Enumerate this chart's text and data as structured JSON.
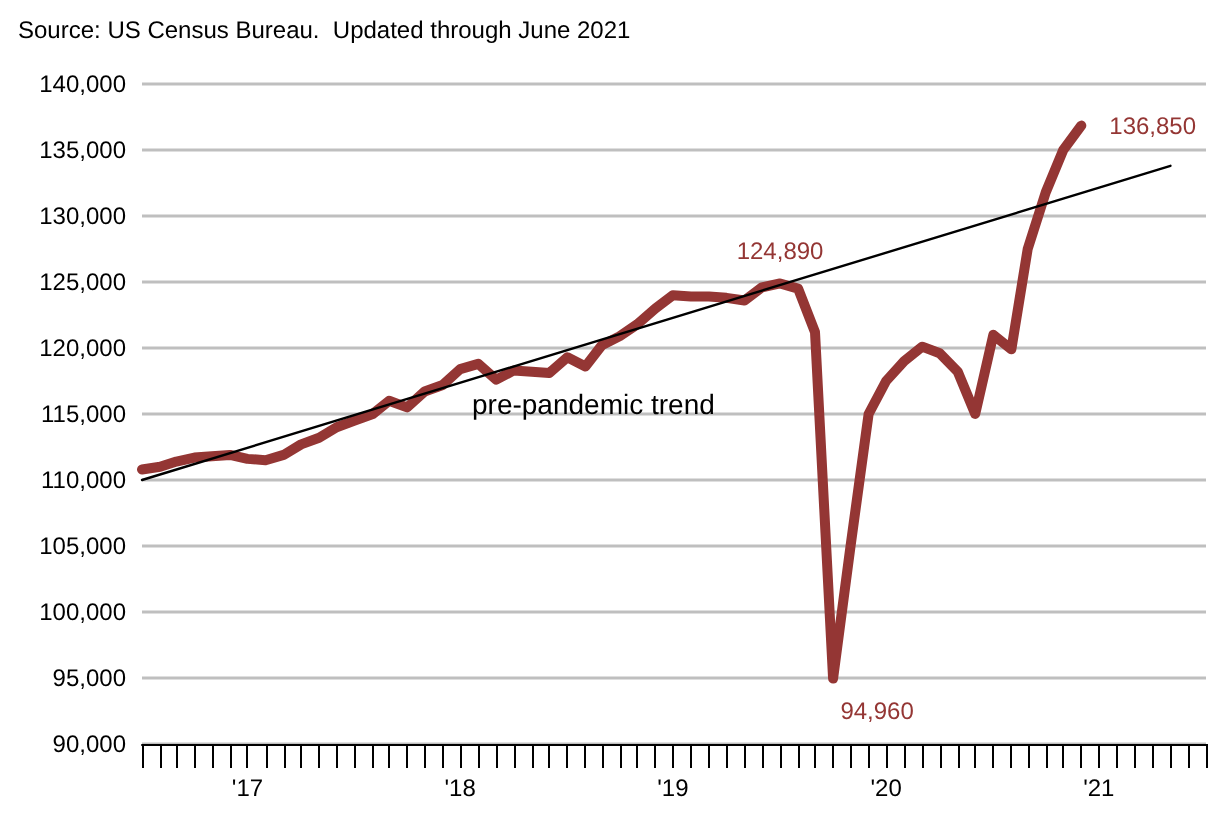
{
  "chart_data": {
    "type": "line",
    "title": "Source: US Census Bureau.  Updated through June 2021",
    "x": [
      "2017-01",
      "2017-02",
      "2017-03",
      "2017-04",
      "2017-05",
      "2017-06",
      "2017-07",
      "2017-08",
      "2017-09",
      "2017-10",
      "2017-11",
      "2017-12",
      "2018-01",
      "2018-02",
      "2018-03",
      "2018-04",
      "2018-05",
      "2018-06",
      "2018-07",
      "2018-08",
      "2018-09",
      "2018-10",
      "2018-11",
      "2018-12",
      "2019-01",
      "2019-02",
      "2019-03",
      "2019-04",
      "2019-05",
      "2019-06",
      "2019-07",
      "2019-08",
      "2019-09",
      "2019-10",
      "2019-11",
      "2019-12",
      "2020-01",
      "2020-02",
      "2020-03",
      "2020-04",
      "2020-05",
      "2020-06",
      "2020-07",
      "2020-08",
      "2020-09",
      "2020-10",
      "2020-11",
      "2020-12",
      "2021-01",
      "2021-02",
      "2021-03",
      "2021-04",
      "2021-05",
      "2021-06"
    ],
    "series": [
      {
        "color": "#943634",
        "values": [
          110800,
          111000,
          111400,
          111700,
          111800,
          111900,
          111600,
          111500,
          111900,
          112700,
          113200,
          114000,
          114500,
          115000,
          116000,
          115500,
          116700,
          117200,
          118400,
          118800,
          117600,
          118300,
          118200,
          118100,
          119300,
          118600,
          120200,
          120900,
          121800,
          123000,
          124000,
          123900,
          123900,
          123800,
          123600,
          124600,
          124890,
          124500,
          121200,
          94960,
          105000,
          115000,
          117500,
          119000,
          120100,
          119600,
          118200,
          115000,
          121000,
          119900,
          127500,
          131800,
          135000,
          136850
        ],
        "value_labels": [
          null,
          null,
          null,
          null,
          null,
          null,
          null,
          null,
          null,
          null,
          null,
          null,
          null,
          null,
          null,
          null,
          null,
          null,
          null,
          null,
          null,
          null,
          null,
          null,
          null,
          null,
          null,
          null,
          null,
          null,
          null,
          null,
          null,
          null,
          null,
          null,
          "124,890",
          null,
          null,
          "94,960",
          null,
          null,
          null,
          null,
          null,
          null,
          null,
          null,
          null,
          null,
          null,
          null,
          null,
          "136,850"
        ]
      },
      {
        "type": "line",
        "color": "#000000",
        "x": [
          "2017-01",
          "2021-11"
        ],
        "values": [
          110000,
          133800
        ]
      }
    ],
    "annotations": [
      "pre-pandemic trend"
    ],
    "xlim": [
      "2017-01",
      "2022-01"
    ],
    "xticks": [
      {
        "value": "2017-01",
        "label": null
      },
      {
        "value": "2017-02",
        "label": null
      },
      {
        "value": "2017-03",
        "label": null
      },
      {
        "value": "2017-04",
        "label": null
      },
      {
        "value": "2017-05",
        "label": null
      },
      {
        "value": "2017-06",
        "label": null
      },
      {
        "value": "2017-07",
        "label": "'17"
      },
      {
        "value": "2017-08",
        "label": null
      },
      {
        "value": "2017-09",
        "label": null
      },
      {
        "value": "2017-10",
        "label": null
      },
      {
        "value": "2017-11",
        "label": null
      },
      {
        "value": "2017-12",
        "label": null
      },
      {
        "value": "2018-01",
        "label": null
      },
      {
        "value": "2018-02",
        "label": null
      },
      {
        "value": "2018-03",
        "label": null
      },
      {
        "value": "2018-04",
        "label": null
      },
      {
        "value": "2018-05",
        "label": null
      },
      {
        "value": "2018-06",
        "label": null
      },
      {
        "value": "2018-07",
        "label": "'18"
      },
      {
        "value": "2018-08",
        "label": null
      },
      {
        "value": "2018-09",
        "label": null
      },
      {
        "value": "2018-10",
        "label": null
      },
      {
        "value": "2018-11",
        "label": null
      },
      {
        "value": "2018-12",
        "label": null
      },
      {
        "value": "2019-01",
        "label": null
      },
      {
        "value": "2019-02",
        "label": null
      },
      {
        "value": "2019-03",
        "label": null
      },
      {
        "value": "2019-04",
        "label": null
      },
      {
        "value": "2019-05",
        "label": null
      },
      {
        "value": "2019-06",
        "label": null
      },
      {
        "value": "2019-07",
        "label": "'19"
      },
      {
        "value": "2019-08",
        "label": null
      },
      {
        "value": "2019-09",
        "label": null
      },
      {
        "value": "2019-10",
        "label": null
      },
      {
        "value": "2019-11",
        "label": null
      },
      {
        "value": "2019-12",
        "label": null
      },
      {
        "value": "2020-01",
        "label": null
      },
      {
        "value": "2020-02",
        "label": null
      },
      {
        "value": "2020-03",
        "label": null
      },
      {
        "value": "2020-04",
        "label": null
      },
      {
        "value": "2020-05",
        "label": null
      },
      {
        "value": "2020-06",
        "label": null
      },
      {
        "value": "2020-07",
        "label": "'20"
      },
      {
        "value": "2020-08",
        "label": null
      },
      {
        "value": "2020-09",
        "label": null
      },
      {
        "value": "2020-10",
        "label": null
      },
      {
        "value": "2020-11",
        "label": null
      },
      {
        "value": "2020-12",
        "label": null
      },
      {
        "value": "2021-01",
        "label": null
      },
      {
        "value": "2021-02",
        "label": null
      },
      {
        "value": "2021-03",
        "label": null
      },
      {
        "value": "2021-04",
        "label": null
      },
      {
        "value": "2021-05",
        "label": null
      },
      {
        "value": "2021-06",
        "label": null
      },
      {
        "value": "2021-07",
        "label": "'21"
      },
      {
        "value": "2021-08",
        "label": null
      },
      {
        "value": "2021-09",
        "label": null
      },
      {
        "value": "2021-10",
        "label": null
      },
      {
        "value": "2021-11",
        "label": null
      },
      {
        "value": "2021-12",
        "label": null
      },
      {
        "value": "2022-01",
        "label": null
      }
    ],
    "ylim": [
      90000,
      140000
    ],
    "yticks": [
      {
        "value": 90000,
        "label": "90,000"
      },
      {
        "value": 95000,
        "label": "95,000"
      },
      {
        "value": 100000,
        "label": "100,000"
      },
      {
        "value": 105000,
        "label": "105,000"
      },
      {
        "value": 110000,
        "label": "110,000"
      },
      {
        "value": 115000,
        "label": "115,000"
      },
      {
        "value": 120000,
        "label": "120,000"
      },
      {
        "value": 125000,
        "label": "125,000"
      },
      {
        "value": 130000,
        "label": "130,000"
      },
      {
        "value": 135000,
        "label": "135,000"
      },
      {
        "value": 140000,
        "label": "140,000"
      }
    ],
    "grid": "y",
    "marker": "none",
    "line_style": "solid"
  }
}
